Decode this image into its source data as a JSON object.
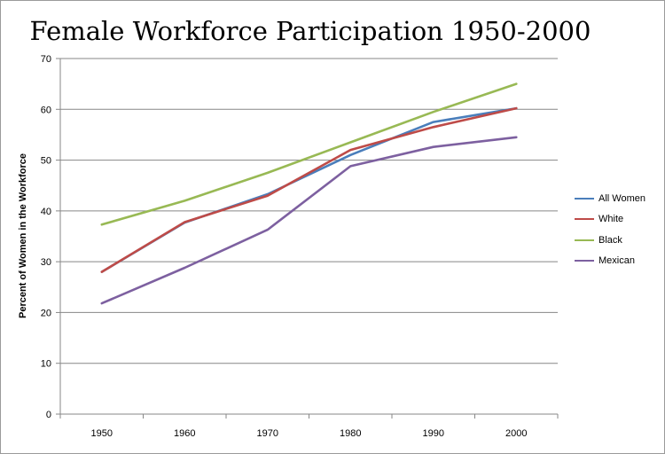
{
  "chart_data": {
    "type": "line",
    "title": "Female Workforce Participation 1950-2000",
    "xlabel": "",
    "ylabel": "Percent of Women in the Workforce",
    "categories": [
      "1950",
      "1960",
      "1970",
      "1980",
      "1990",
      "2000"
    ],
    "ylim": [
      0,
      70
    ],
    "yticks": [
      "0",
      "10",
      "20",
      "30",
      "40",
      "50",
      "60",
      "70"
    ],
    "grid": true,
    "legend_position": "right",
    "series": [
      {
        "name": "All Women",
        "color": "#4a7ebb",
        "values": [
          28,
          37.7,
          43.3,
          51,
          57.5,
          60.2
        ]
      },
      {
        "name": "White",
        "color": "#be4b48",
        "values": [
          28,
          37.8,
          43,
          52,
          56.5,
          60.2
        ]
      },
      {
        "name": "Black",
        "color": "#98b954",
        "values": [
          37.3,
          42,
          47.5,
          53.5,
          59.5,
          65
        ]
      },
      {
        "name": "Mexican",
        "color": "#7d60a0",
        "values": [
          21.8,
          28.8,
          36.3,
          48.8,
          52.6,
          54.5
        ]
      }
    ]
  }
}
